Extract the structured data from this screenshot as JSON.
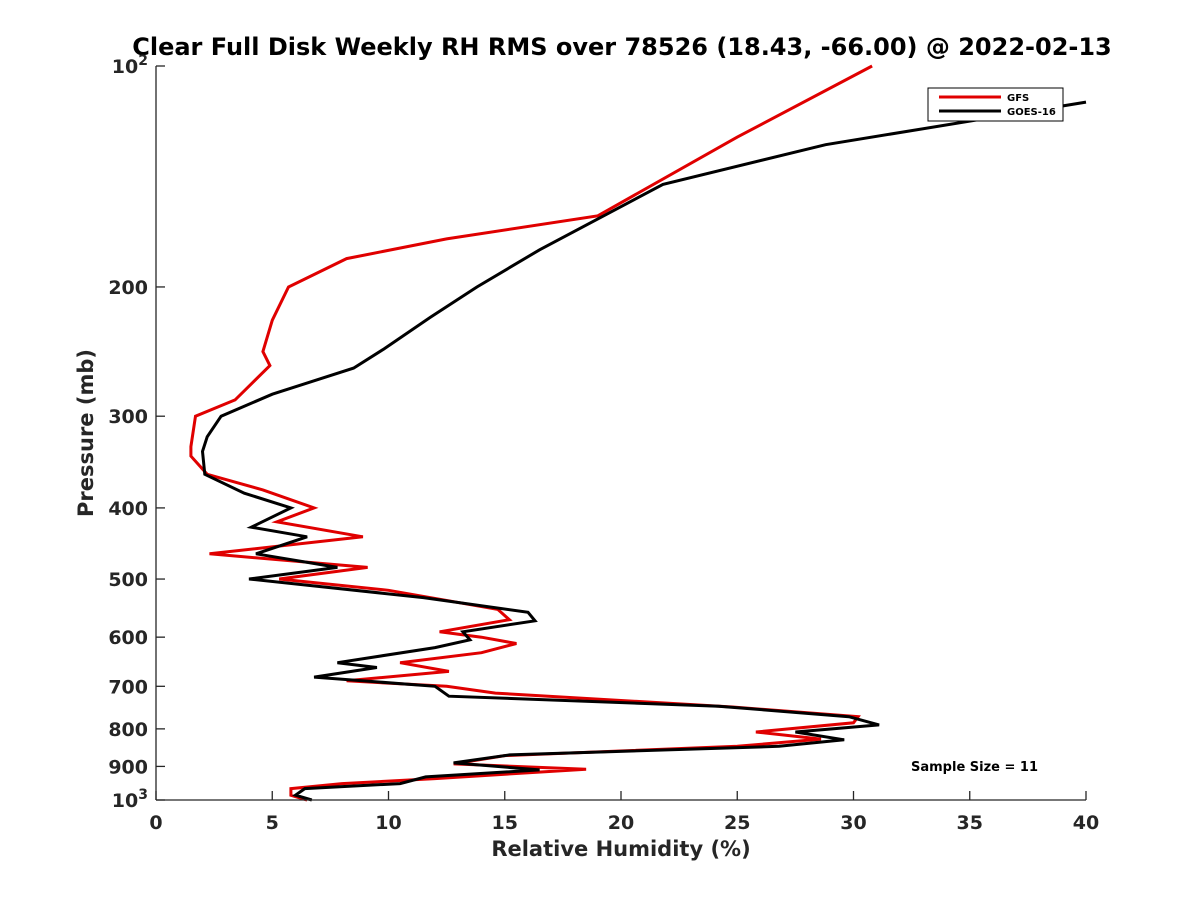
{
  "chart_data": {
    "type": "line",
    "title": "Clear Full Disk Weekly RH RMS over 78526 (18.43, -66.00) @ 2022-02-13",
    "xlabel": "Relative Humidity (%)",
    "ylabel": "Pressure (mb)",
    "xlim": [
      0,
      40
    ],
    "ylim": [
      100,
      1000
    ],
    "y_scale": "log",
    "y_reversed": true,
    "x_ticks": [
      "0",
      "5",
      "10",
      "15",
      "20",
      "25",
      "30",
      "35",
      "40"
    ],
    "y_ticks": [
      {
        "value": 100,
        "base": "10",
        "exp": "2"
      },
      {
        "value": 200,
        "label": "200"
      },
      {
        "value": 300,
        "label": "300"
      },
      {
        "value": 400,
        "label": "400"
      },
      {
        "value": 500,
        "label": "500"
      },
      {
        "value": 600,
        "label": "600"
      },
      {
        "value": 700,
        "label": "700"
      },
      {
        "value": 800,
        "label": "800"
      },
      {
        "value": 900,
        "label": "900"
      },
      {
        "value": 1000,
        "base": "10",
        "exp": "3"
      }
    ],
    "legend_position": "top-right",
    "grid": false,
    "annotation": "Sample Size = 11",
    "series": [
      {
        "name": "GFS",
        "color": "#e00000",
        "points": [
          [
            30.8,
            100
          ],
          [
            25.0,
            125
          ],
          [
            19.0,
            160
          ],
          [
            12.5,
            172
          ],
          [
            8.2,
            183
          ],
          [
            5.7,
            200
          ],
          [
            5.0,
            222
          ],
          [
            4.6,
            245
          ],
          [
            4.9,
            256
          ],
          [
            3.4,
            285
          ],
          [
            1.7,
            300
          ],
          [
            1.5,
            330
          ],
          [
            1.5,
            340
          ],
          [
            2.2,
            360
          ],
          [
            4.6,
            378
          ],
          [
            6.8,
            400
          ],
          [
            5.2,
            418
          ],
          [
            8.9,
            438
          ],
          [
            2.3,
            462
          ],
          [
            9.1,
            482
          ],
          [
            5.3,
            500
          ],
          [
            10.0,
            518
          ],
          [
            14.7,
            550
          ],
          [
            15.2,
            568
          ],
          [
            12.2,
            590
          ],
          [
            14.0,
            600
          ],
          [
            15.5,
            612
          ],
          [
            14.0,
            630
          ],
          [
            10.5,
            650
          ],
          [
            12.6,
            668
          ],
          [
            8.2,
            688
          ],
          [
            12.5,
            700
          ],
          [
            14.6,
            715
          ],
          [
            24.8,
            747
          ],
          [
            30.2,
            770
          ],
          [
            30.0,
            785
          ],
          [
            25.8,
            808
          ],
          [
            28.6,
            826
          ],
          [
            25.0,
            845
          ],
          [
            15.0,
            870
          ],
          [
            12.8,
            893
          ],
          [
            18.5,
            908
          ],
          [
            12.0,
            935
          ],
          [
            8.0,
            950
          ],
          [
            5.8,
            965
          ],
          [
            5.8,
            985
          ],
          [
            6.5,
            1000
          ]
        ]
      },
      {
        "name": "GOES-16",
        "color": "#000000",
        "points": [
          [
            40.0,
            112
          ],
          [
            28.8,
            128
          ],
          [
            21.8,
            145
          ],
          [
            16.5,
            178
          ],
          [
            13.8,
            200
          ],
          [
            11.8,
            220
          ],
          [
            9.8,
            243
          ],
          [
            8.5,
            258
          ],
          [
            5.0,
            280
          ],
          [
            2.8,
            300
          ],
          [
            2.2,
            320
          ],
          [
            2.0,
            335
          ],
          [
            2.1,
            360
          ],
          [
            3.8,
            382
          ],
          [
            5.8,
            400
          ],
          [
            4.1,
            425
          ],
          [
            6.5,
            438
          ],
          [
            4.3,
            462
          ],
          [
            7.8,
            482
          ],
          [
            4.0,
            500
          ],
          [
            11.5,
            530
          ],
          [
            16.0,
            555
          ],
          [
            16.3,
            570
          ],
          [
            13.2,
            590
          ],
          [
            13.5,
            605
          ],
          [
            12.0,
            620
          ],
          [
            7.8,
            650
          ],
          [
            9.5,
            660
          ],
          [
            6.8,
            680
          ],
          [
            12.0,
            700
          ],
          [
            12.6,
            722
          ],
          [
            24.2,
            745
          ],
          [
            29.8,
            770
          ],
          [
            31.1,
            790
          ],
          [
            27.5,
            808
          ],
          [
            29.6,
            828
          ],
          [
            26.8,
            845
          ],
          [
            15.2,
            868
          ],
          [
            12.8,
            890
          ],
          [
            16.5,
            910
          ],
          [
            11.6,
            930
          ],
          [
            10.5,
            950
          ],
          [
            6.4,
            965
          ],
          [
            6.0,
            985
          ],
          [
            6.7,
            1000
          ]
        ]
      }
    ]
  }
}
